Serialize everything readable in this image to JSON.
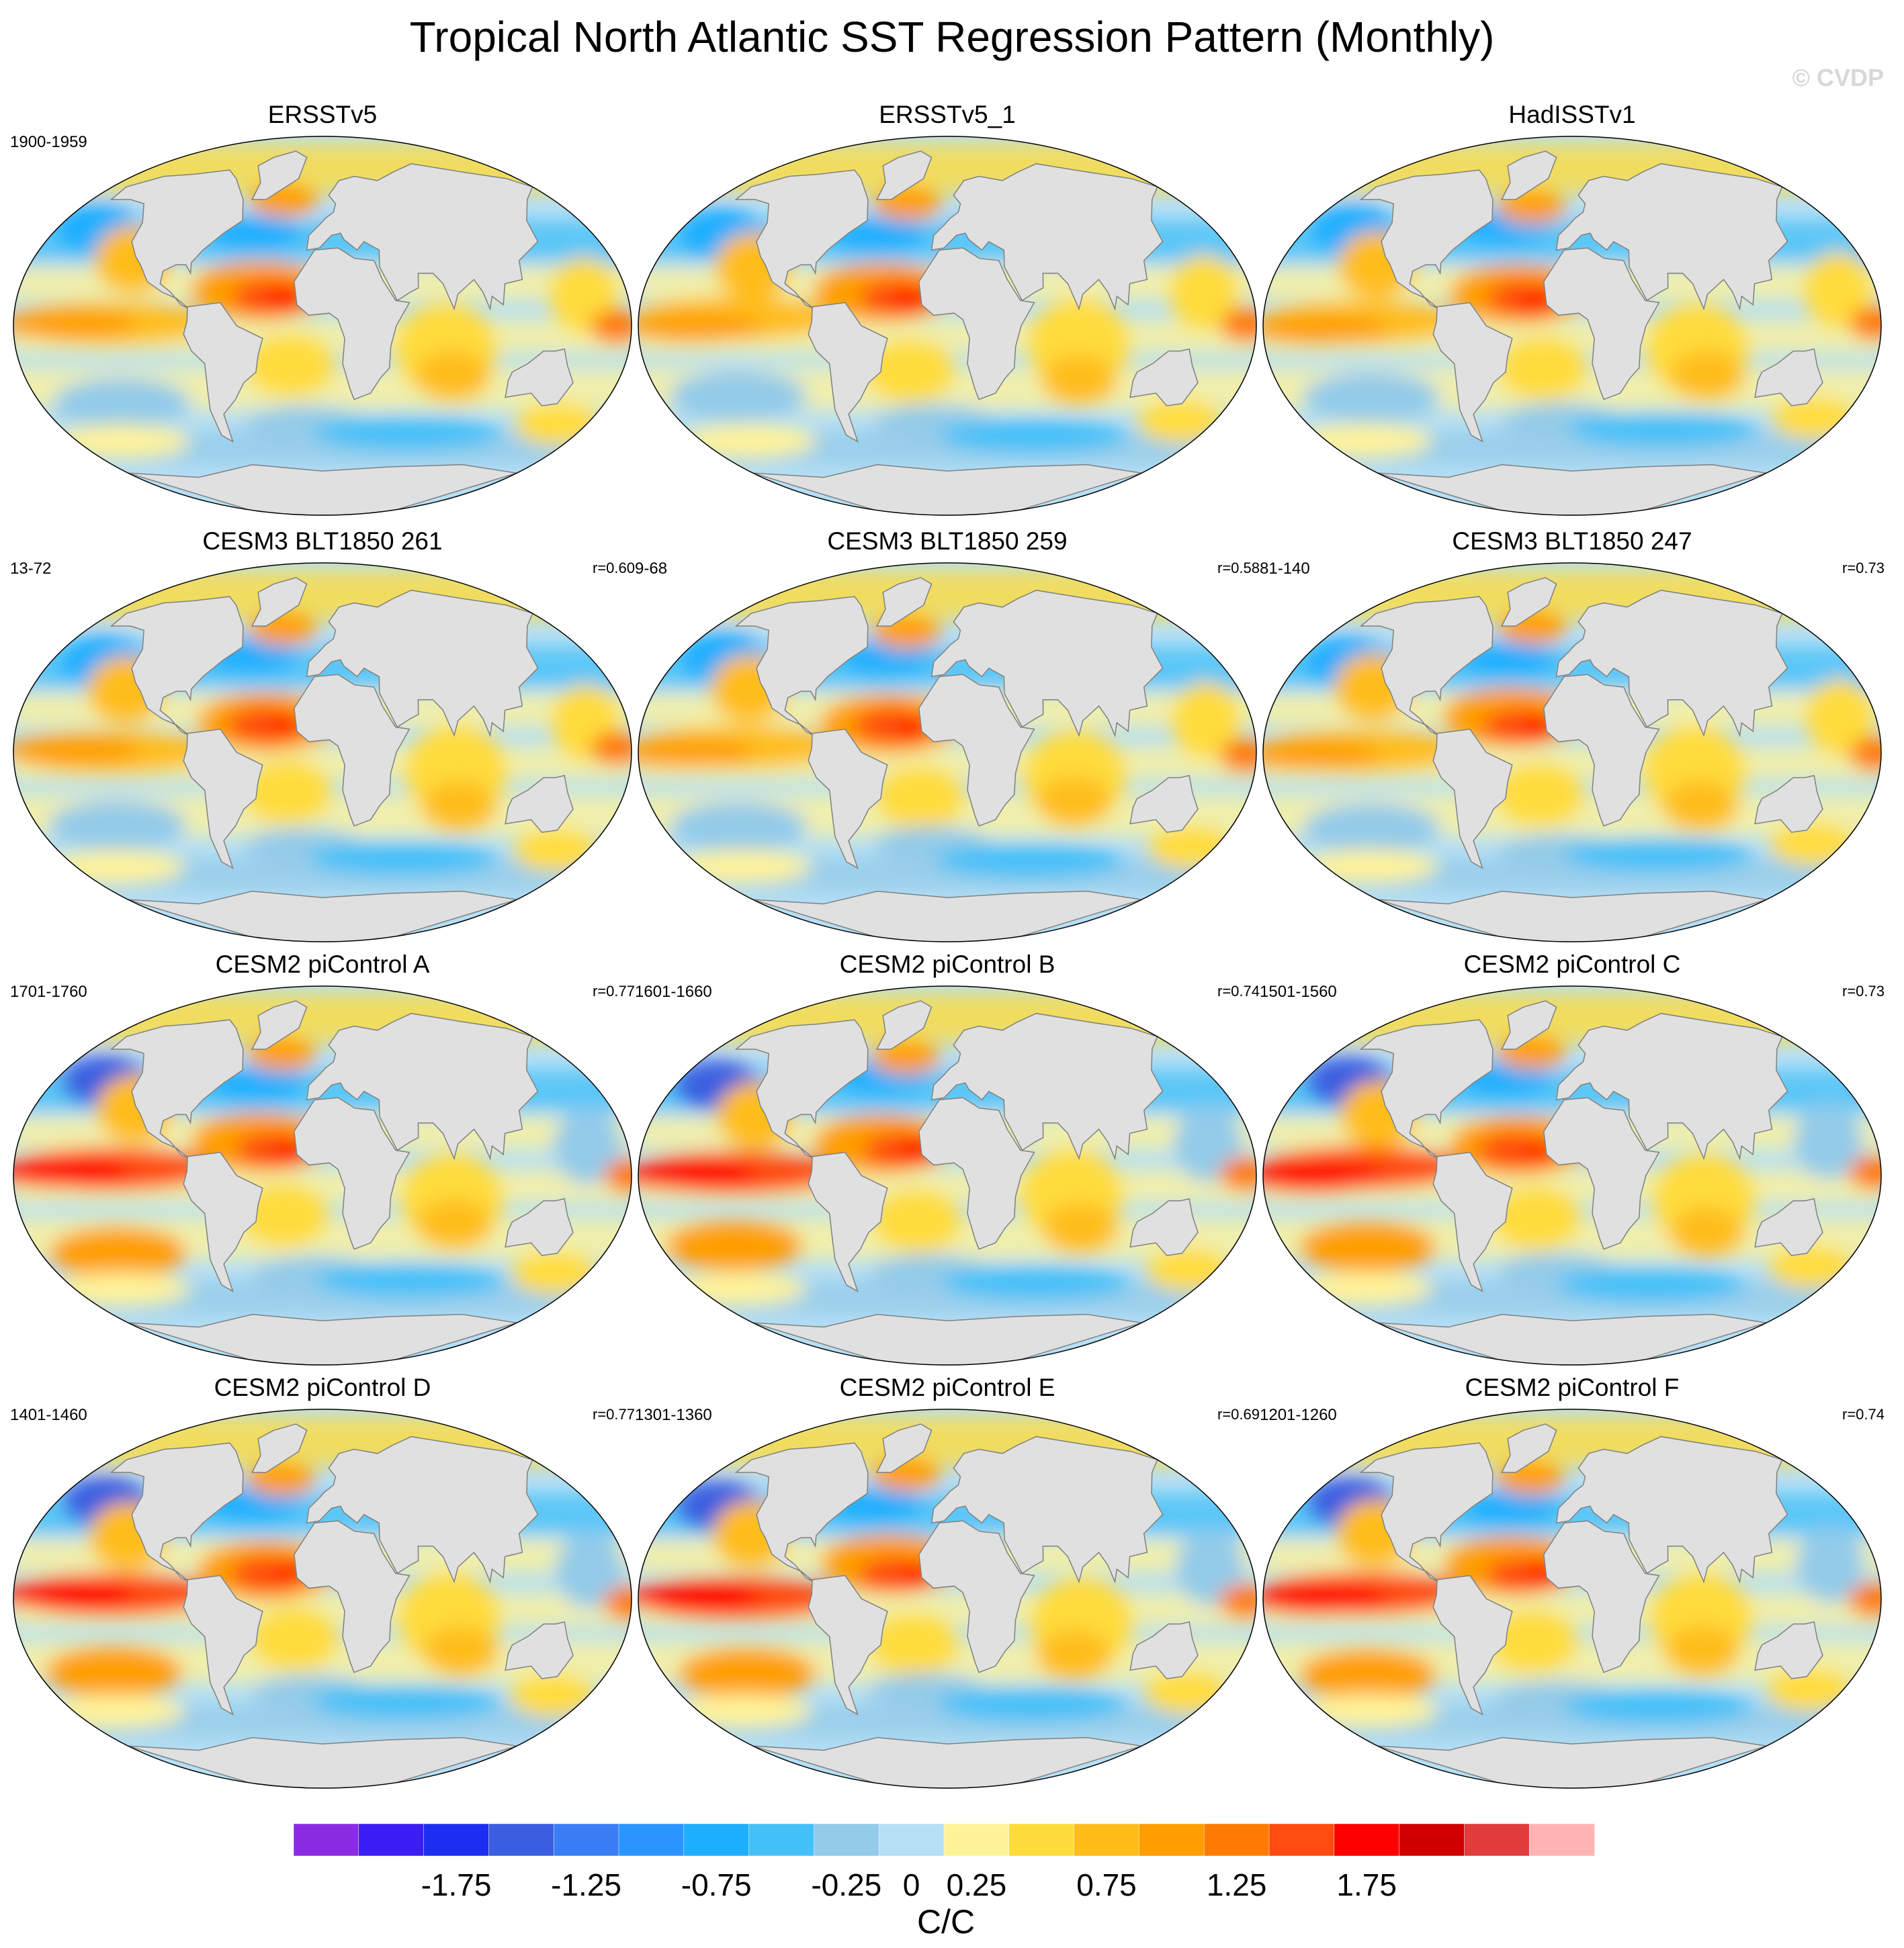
{
  "figure": {
    "title": "Tropical North Atlantic SST Regression Pattern (Monthly)",
    "watermark": "© CVDP"
  },
  "chart_data": {
    "type": "map-panels",
    "panels": [
      {
        "title": "ERSSTv5",
        "period": "1900-1959",
        "r": "",
        "variant": 0
      },
      {
        "title": "ERSSTv5_1",
        "period": "",
        "r": "",
        "variant": 1
      },
      {
        "title": "HadISSTv1",
        "period": "",
        "r": "",
        "variant": 2
      },
      {
        "title": "CESM3 BLT1850 261",
        "period": "13-72",
        "r": "r=0.60",
        "variant": 3
      },
      {
        "title": "CESM3 BLT1850 259",
        "period": "9-68",
        "r": "r=0.58",
        "variant": 4
      },
      {
        "title": "CESM3 BLT1850 247",
        "period": "81-140",
        "r": "r=0.73",
        "variant": 5
      },
      {
        "title": "CESM2 piControl A",
        "period": "1701-1760",
        "r": "r=0.77",
        "variant": 6
      },
      {
        "title": "CESM2 piControl B",
        "period": "1601-1660",
        "r": "r=0.74",
        "variant": 7
      },
      {
        "title": "CESM2 piControl C",
        "period": "1501-1560",
        "r": "r=0.73",
        "variant": 8
      },
      {
        "title": "CESM2 piControl D",
        "period": "1401-1460",
        "r": "r=0.77",
        "variant": 9
      },
      {
        "title": "CESM2 piControl E",
        "period": "1301-1360",
        "r": "r=0.69",
        "variant": 10
      },
      {
        "title": "CESM2 piControl F",
        "period": "1201-1260",
        "r": "r=0.74",
        "variant": 11
      }
    ],
    "colorbar": {
      "label": "C/C",
      "levels": [
        -2,
        -1.75,
        -1.5,
        -1.25,
        -1,
        -0.75,
        -0.5,
        -0.25,
        0,
        0.25,
        0.5,
        0.75,
        1,
        1.25,
        1.5,
        1.75,
        2
      ],
      "tick_labels": [
        "-1.75",
        "-1.25",
        "-0.75",
        "-0.25",
        "0",
        "0.25",
        "0.75",
        "1.25",
        "1.75"
      ],
      "tick_values": [
        -1.75,
        -1.25,
        -0.75,
        -0.25,
        0,
        0.25,
        0.75,
        1.25,
        1.75
      ],
      "colors": [
        "#8a2be2",
        "#3a1df5",
        "#1d2ef0",
        "#3a5ee0",
        "#3a7ef5",
        "#2b95ff",
        "#1eaefe",
        "#44c0f8",
        "#93cbe9",
        "#b5dff5",
        "#fff39a",
        "#ffdc3c",
        "#ffbd1a",
        "#ff9e00",
        "#ff7a00",
        "#ff4b0f",
        "#ff0000",
        "#d00000",
        "#e03c3c",
        "#ffb4b4"
      ]
    },
    "land_color": "#e0e0e0",
    "coastline_color": "#808080"
  }
}
